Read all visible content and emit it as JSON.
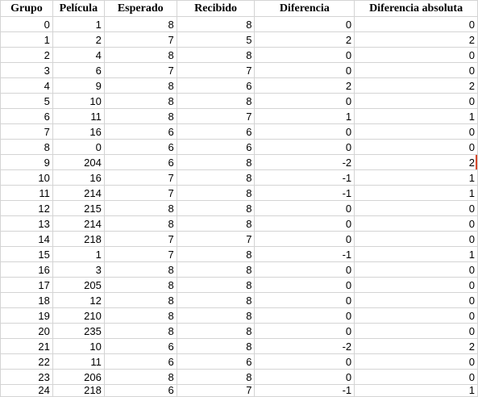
{
  "columns": [
    "Grupo",
    "Película",
    "Esperado",
    "Recibido",
    "Diferencia",
    "Diferencia absoluta"
  ],
  "rows": [
    [
      "0",
      "1",
      "8",
      "8",
      "0",
      "0"
    ],
    [
      "1",
      "2",
      "7",
      "5",
      "2",
      "2"
    ],
    [
      "2",
      "4",
      "8",
      "8",
      "0",
      "0"
    ],
    [
      "3",
      "6",
      "7",
      "7",
      "0",
      "0"
    ],
    [
      "4",
      "9",
      "8",
      "6",
      "2",
      "2"
    ],
    [
      "5",
      "10",
      "8",
      "8",
      "0",
      "0"
    ],
    [
      "6",
      "11",
      "8",
      "7",
      "1",
      "1"
    ],
    [
      "7",
      "16",
      "6",
      "6",
      "0",
      "0"
    ],
    [
      "8",
      "0",
      "6",
      "6",
      "0",
      "0"
    ],
    [
      "9",
      "204",
      "6",
      "8",
      "-2",
      "2"
    ],
    [
      "10",
      "16",
      "7",
      "8",
      "-1",
      "1"
    ],
    [
      "11",
      "214",
      "7",
      "8",
      "-1",
      "1"
    ],
    [
      "12",
      "215",
      "8",
      "8",
      "0",
      "0"
    ],
    [
      "13",
      "214",
      "8",
      "8",
      "0",
      "0"
    ],
    [
      "14",
      "218",
      "7",
      "7",
      "0",
      "0"
    ],
    [
      "15",
      "1",
      "7",
      "8",
      "-1",
      "1"
    ],
    [
      "16",
      "3",
      "8",
      "8",
      "0",
      "0"
    ],
    [
      "17",
      "205",
      "8",
      "8",
      "0",
      "0"
    ],
    [
      "18",
      "12",
      "8",
      "8",
      "0",
      "0"
    ],
    [
      "19",
      "210",
      "8",
      "8",
      "0",
      "0"
    ],
    [
      "20",
      "235",
      "8",
      "8",
      "0",
      "0"
    ],
    [
      "21",
      "10",
      "6",
      "8",
      "-2",
      "2"
    ],
    [
      "22",
      "11",
      "6",
      "6",
      "0",
      "0"
    ],
    [
      "23",
      "206",
      "8",
      "8",
      "0",
      "0"
    ],
    [
      "24",
      "218",
      "6",
      "7",
      "-1",
      "1"
    ]
  ],
  "selection": {
    "row": 9,
    "col": 5,
    "color": "#d6482b"
  }
}
